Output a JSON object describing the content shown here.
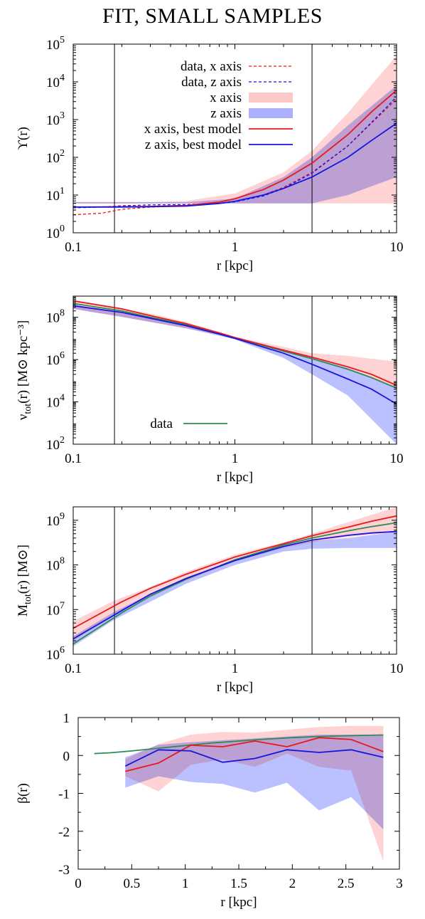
{
  "title": "FIT, SMALL SAMPLES",
  "colors": {
    "x_line": "#e8181c",
    "z_line": "#1616e0",
    "data_line": "#2e8b57",
    "x_band": "#ffc8c8",
    "z_band": "#aab0ff",
    "axis": "#000000"
  },
  "chart_data": [
    {
      "type": "line",
      "xscale": "log",
      "yscale": "log",
      "xlim": [
        0.1,
        10
      ],
      "ylim": [
        1,
        100000
      ],
      "xlabel": "r [kpc]",
      "ylabel": "ϒ(r)",
      "x_ticks": [
        "0.1",
        "1",
        "10"
      ],
      "y_ticks": [
        [
          "10",
          "0"
        ],
        [
          "10",
          "1"
        ],
        [
          "10",
          "2"
        ],
        [
          "10",
          "3"
        ],
        [
          "10",
          "4"
        ],
        [
          "10",
          "5"
        ]
      ],
      "vlines": [
        0.18,
        3.0
      ],
      "legend": {
        "position": "top-left",
        "entries": [
          "data, x axis",
          "data, z axis",
          "x axis",
          "z axis",
          "x axis, best model",
          "z axis, best model"
        ]
      },
      "bands": [
        {
          "name": "x axis",
          "x": [
            0.1,
            0.18,
            0.3,
            0.5,
            1,
            2,
            3,
            5,
            10
          ],
          "lower": [
            6,
            6,
            6,
            6,
            6,
            6,
            6,
            6,
            6
          ],
          "upper": [
            6.5,
            6.5,
            6.5,
            7,
            11,
            40,
            150,
            1500,
            50000
          ]
        },
        {
          "name": "z axis",
          "x": [
            0.1,
            0.18,
            0.3,
            0.5,
            1,
            2,
            3,
            5,
            10
          ],
          "lower": [
            6,
            6,
            6,
            6,
            6,
            6,
            6,
            10,
            30
          ],
          "upper": [
            6.5,
            6.5,
            6.5,
            6.5,
            8,
            30,
            100,
            700,
            8000
          ]
        }
      ],
      "series": [
        {
          "name": "data, x axis",
          "style": "dashed",
          "color": "x",
          "x": [
            0.1,
            0.15,
            0.2,
            0.3,
            0.5,
            0.8,
            1,
            1.5,
            2,
            3,
            5,
            8,
            10
          ],
          "y": [
            3.0,
            3.3,
            4.2,
            4.8,
            5.2,
            6.0,
            6.8,
            10,
            16,
            40,
            200,
            1400,
            3500
          ]
        },
        {
          "name": "data, z axis",
          "style": "dashed",
          "color": "z",
          "x": [
            0.1,
            0.15,
            0.2,
            0.3,
            0.5,
            0.8,
            1,
            1.5,
            2,
            3,
            5,
            8,
            10
          ],
          "y": [
            4.6,
            4.8,
            5.2,
            5.5,
            5.6,
            6.0,
            6.6,
            9.5,
            15,
            38,
            200,
            1500,
            4000
          ]
        },
        {
          "name": "x axis, best model",
          "style": "solid",
          "color": "x",
          "x": [
            0.1,
            0.2,
            0.3,
            0.5,
            0.8,
            1,
            1.5,
            2,
            3,
            5,
            7,
            10
          ],
          "y": [
            4.8,
            4.9,
            5.0,
            5.3,
            6.5,
            8.0,
            14,
            25,
            70,
            400,
            1600,
            6000
          ]
        },
        {
          "name": "z axis, best model",
          "style": "solid",
          "color": "z",
          "x": [
            0.1,
            0.2,
            0.3,
            0.5,
            0.8,
            1,
            1.5,
            2,
            3,
            5,
            7,
            10
          ],
          "y": [
            4.8,
            4.8,
            4.9,
            5.1,
            6.0,
            6.8,
            10,
            15,
            30,
            100,
            280,
            800
          ]
        }
      ]
    },
    {
      "type": "line",
      "xscale": "log",
      "yscale": "log",
      "xlim": [
        0.1,
        10
      ],
      "ylim": [
        100,
        1000000000
      ],
      "xlabel": "r [kpc]",
      "ylabel": "ν_tot(r) [M⊙ kpc⁻³]",
      "x_ticks": [
        "0.1",
        "1",
        "10"
      ],
      "y_ticks": [
        [
          "10",
          "2"
        ],
        [
          "10",
          "4"
        ],
        [
          "10",
          "6"
        ],
        [
          "10",
          "8"
        ]
      ],
      "vlines": [
        0.18,
        3.0
      ],
      "legend": {
        "position": "bottom-left",
        "entries": [
          "data"
        ]
      },
      "bands": [
        {
          "name": "x axis",
          "x": [
            0.1,
            0.18,
            0.3,
            0.5,
            1,
            2,
            3,
            5,
            10
          ],
          "lower": [
            250000000,
            120000000,
            60000000,
            30000000,
            11000000,
            3000000,
            1200000,
            400000,
            50000
          ],
          "upper": [
            600000000,
            300000000,
            150000000,
            60000000,
            12000000,
            4000000,
            2000000,
            1500000,
            800000
          ]
        },
        {
          "name": "z axis",
          "x": [
            0.1,
            0.18,
            0.3,
            0.5,
            1,
            2,
            3,
            5,
            10
          ],
          "lower": [
            250000000,
            120000000,
            60000000,
            30000000,
            9000000,
            1200000,
            200000,
            20000,
            100
          ],
          "upper": [
            400000000,
            180000000,
            90000000,
            40000000,
            11000000,
            3000000,
            1200000,
            400000,
            50000
          ]
        }
      ],
      "series": [
        {
          "name": "data",
          "style": "solid",
          "color": "data",
          "x": [
            0.1,
            0.2,
            0.3,
            0.5,
            0.8,
            1,
            2,
            3,
            5,
            7,
            10
          ],
          "y": [
            450000000,
            200000000,
            100000000,
            45000000,
            18000000,
            11000000,
            2500000,
            1100000,
            350000,
            140000,
            45000
          ]
        },
        {
          "name": "x axis, best model",
          "style": "solid",
          "color": "x",
          "x": [
            0.1,
            0.2,
            0.3,
            0.5,
            0.8,
            1,
            2,
            3,
            5,
            7,
            10
          ],
          "y": [
            600000000,
            250000000,
            120000000,
            50000000,
            18000000,
            11000000,
            2800000,
            1300000,
            450000,
            200000,
            60000
          ]
        },
        {
          "name": "z axis, best model",
          "style": "solid",
          "color": "z",
          "x": [
            0.1,
            0.2,
            0.3,
            0.5,
            0.8,
            1,
            2,
            3,
            5,
            7,
            10
          ],
          "y": [
            350000000,
            170000000,
            90000000,
            40000000,
            16000000,
            10000000,
            2000000,
            600000,
            120000,
            40000,
            8000
          ]
        }
      ]
    },
    {
      "type": "line",
      "xscale": "log",
      "yscale": "log",
      "xlim": [
        0.1,
        10
      ],
      "ylim": [
        1000000,
        2000000000
      ],
      "xlabel": "r [kpc]",
      "ylabel": "M_tot(r) [M⊙]",
      "x_ticks": [
        "0.1",
        "1",
        "10"
      ],
      "y_ticks": [
        [
          "10",
          "6"
        ],
        [
          "10",
          "7"
        ],
        [
          "10",
          "8"
        ],
        [
          "10",
          "9"
        ]
      ],
      "vlines": [
        0.18,
        3.0
      ],
      "legend": {
        "position": "none",
        "entries": []
      },
      "bands": [
        {
          "name": "x axis",
          "x": [
            0.1,
            0.18,
            0.3,
            0.5,
            1,
            2,
            3,
            5,
            10
          ],
          "lower": [
            2000000,
            8000000,
            20000000,
            45000000,
            120000000,
            240000000,
            320000000,
            420000000,
            550000000
          ],
          "upper": [
            5500000,
            16000000,
            32000000,
            70000000,
            170000000,
            320000000,
            500000000,
            900000000,
            2000000000
          ]
        },
        {
          "name": "z axis",
          "x": [
            0.1,
            0.18,
            0.3,
            0.5,
            1,
            2,
            3,
            5,
            10
          ],
          "lower": [
            1500000,
            6000000,
            15000000,
            38000000,
            100000000,
            200000000,
            230000000,
            240000000,
            240000000
          ],
          "upper": [
            2500000,
            9000000,
            22000000,
            50000000,
            130000000,
            260000000,
            340000000,
            400000000,
            550000000
          ]
        }
      ],
      "series": [
        {
          "name": "data",
          "style": "solid",
          "color": "data",
          "x": [
            0.1,
            0.2,
            0.3,
            0.5,
            1,
            2,
            3,
            5,
            7,
            10
          ],
          "y": [
            1700000,
            8500000,
            20000000,
            48000000,
            130000000,
            280000000,
            400000000,
            580000000,
            720000000,
            880000000
          ]
        },
        {
          "name": "x axis, best model",
          "style": "solid",
          "color": "x",
          "x": [
            0.1,
            0.2,
            0.3,
            0.5,
            1,
            2,
            3,
            5,
            7,
            10
          ],
          "y": [
            3800000,
            15000000,
            30000000,
            62000000,
            150000000,
            300000000,
            450000000,
            700000000,
            950000000,
            1250000000
          ]
        },
        {
          "name": "z axis, best model",
          "style": "solid",
          "color": "z",
          "x": [
            0.1,
            0.2,
            0.3,
            0.5,
            1,
            2,
            3,
            5,
            7,
            10
          ],
          "y": [
            2200000,
            9500000,
            22000000,
            50000000,
            125000000,
            260000000,
            360000000,
            460000000,
            520000000,
            560000000
          ]
        }
      ]
    },
    {
      "type": "line",
      "xscale": "linear",
      "yscale": "linear",
      "xlim": [
        0,
        3
      ],
      "ylim": [
        -3,
        1
      ],
      "xlabel": "r [kpc]",
      "ylabel": "β(r)",
      "x_ticks": [
        "0",
        "0.5",
        "1",
        "1.5",
        "2",
        "2.5",
        "3"
      ],
      "y_ticks": [
        "-3",
        "-2",
        "-1",
        "0",
        "1"
      ],
      "vlines": [],
      "legend": {
        "position": "none",
        "entries": []
      },
      "bands": [
        {
          "name": "x axis",
          "x": [
            0.44,
            0.75,
            1.05,
            1.35,
            1.65,
            1.95,
            2.25,
            2.55,
            2.85
          ],
          "lower": [
            -0.55,
            -0.95,
            -0.25,
            -0.1,
            -0.3,
            0.05,
            -0.3,
            -0.4,
            -2.8
          ],
          "upper": [
            -0.1,
            0.3,
            0.55,
            0.62,
            0.6,
            0.68,
            0.75,
            0.78,
            0.78
          ]
        },
        {
          "name": "z axis",
          "x": [
            0.44,
            0.75,
            1.05,
            1.35,
            1.65,
            1.95,
            2.25,
            2.55,
            2.85
          ],
          "lower": [
            -0.85,
            -0.55,
            -0.7,
            -0.75,
            -0.98,
            -0.72,
            -1.45,
            -1.1,
            -1.95
          ],
          "upper": [
            -0.05,
            0.28,
            0.35,
            0.4,
            0.45,
            0.5,
            0.55,
            0.55,
            0.55
          ]
        }
      ],
      "series": [
        {
          "name": "data",
          "style": "solid",
          "color": "data",
          "x": [
            0.15,
            0.3,
            0.5,
            0.75,
            1.0,
            1.25,
            1.5,
            1.75,
            2.0,
            2.25,
            2.5,
            2.85
          ],
          "y": [
            0.05,
            0.07,
            0.12,
            0.19,
            0.26,
            0.33,
            0.38,
            0.43,
            0.47,
            0.5,
            0.52,
            0.54
          ]
        },
        {
          "name": "x axis, best model",
          "style": "solid",
          "color": "x",
          "x": [
            0.44,
            0.75,
            1.05,
            1.35,
            1.65,
            1.95,
            2.25,
            2.55,
            2.85
          ],
          "y": [
            -0.42,
            -0.2,
            0.27,
            0.23,
            0.38,
            0.23,
            0.47,
            0.42,
            0.1
          ]
        },
        {
          "name": "z axis, best model",
          "style": "solid",
          "color": "z",
          "x": [
            0.44,
            0.75,
            1.05,
            1.35,
            1.65,
            1.95,
            2.25,
            2.55,
            2.85
          ],
          "y": [
            -0.28,
            0.15,
            0.12,
            -0.18,
            -0.08,
            0.15,
            0.08,
            0.15,
            -0.05
          ]
        }
      ]
    }
  ]
}
